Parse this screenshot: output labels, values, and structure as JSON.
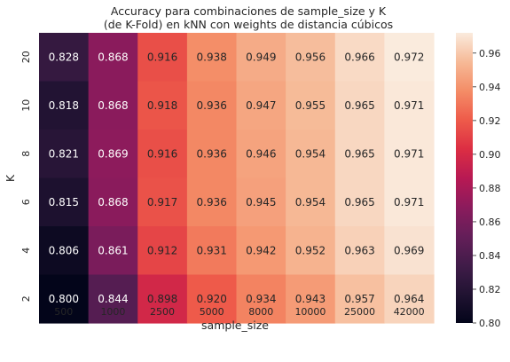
{
  "chart_data": {
    "type": "heatmap",
    "title_lines": [
      "Accuracy para combinaciones de sample_size y K",
      "(de K-Fold) en kNN con weights de distancia cúbicos"
    ],
    "xlabel": "sample_size",
    "ylabel": "K",
    "x_categories": [
      "500",
      "1000",
      "2500",
      "5000",
      "8000",
      "10000",
      "25000",
      "42000"
    ],
    "y_categories": [
      "20",
      "10",
      "8",
      "6",
      "4",
      "2"
    ],
    "values": [
      [
        0.828,
        0.868,
        0.916,
        0.938,
        0.949,
        0.956,
        0.966,
        0.972
      ],
      [
        0.818,
        0.868,
        0.918,
        0.936,
        0.947,
        0.955,
        0.965,
        0.971
      ],
      [
        0.821,
        0.869,
        0.916,
        0.936,
        0.946,
        0.954,
        0.965,
        0.971
      ],
      [
        0.815,
        0.868,
        0.917,
        0.936,
        0.945,
        0.954,
        0.965,
        0.971
      ],
      [
        0.806,
        0.861,
        0.912,
        0.931,
        0.942,
        0.952,
        0.963,
        0.969
      ],
      [
        0.8,
        0.844,
        0.898,
        0.92,
        0.934,
        0.943,
        0.957,
        0.964
      ]
    ],
    "cell_labels": [
      [
        "0.828",
        "0.868",
        "0.916",
        "0.938",
        "0.949",
        "0.956",
        "0.966",
        "0.972"
      ],
      [
        "0.818",
        "0.868",
        "0.918",
        "0.936",
        "0.947",
        "0.955",
        "0.965",
        "0.971"
      ],
      [
        "0.821",
        "0.869",
        "0.916",
        "0.936",
        "0.946",
        "0.954",
        "0.965",
        "0.971"
      ],
      [
        "0.815",
        "0.868",
        "0.917",
        "0.936",
        "0.945",
        "0.954",
        "0.965",
        "0.971"
      ],
      [
        "0.806",
        "0.861",
        "0.912",
        "0.931",
        "0.942",
        "0.952",
        "0.963",
        "0.969"
      ],
      [
        "0.800",
        "0.844",
        "0.898",
        "0.920",
        "0.934",
        "0.943",
        "0.957",
        "0.964"
      ]
    ],
    "color_range": [
      0.8,
      0.972
    ],
    "colormap": "rocket",
    "colorbar_ticks": [
      "0.80",
      "0.82",
      "0.84",
      "0.86",
      "0.88",
      "0.90",
      "0.92",
      "0.94",
      "0.96"
    ],
    "colorbar_tick_values": [
      0.8,
      0.82,
      0.84,
      0.86,
      0.88,
      0.9,
      0.92,
      0.94,
      0.96
    ],
    "text_colors": {
      "dark": "#262626",
      "light": "#ffffff"
    }
  }
}
